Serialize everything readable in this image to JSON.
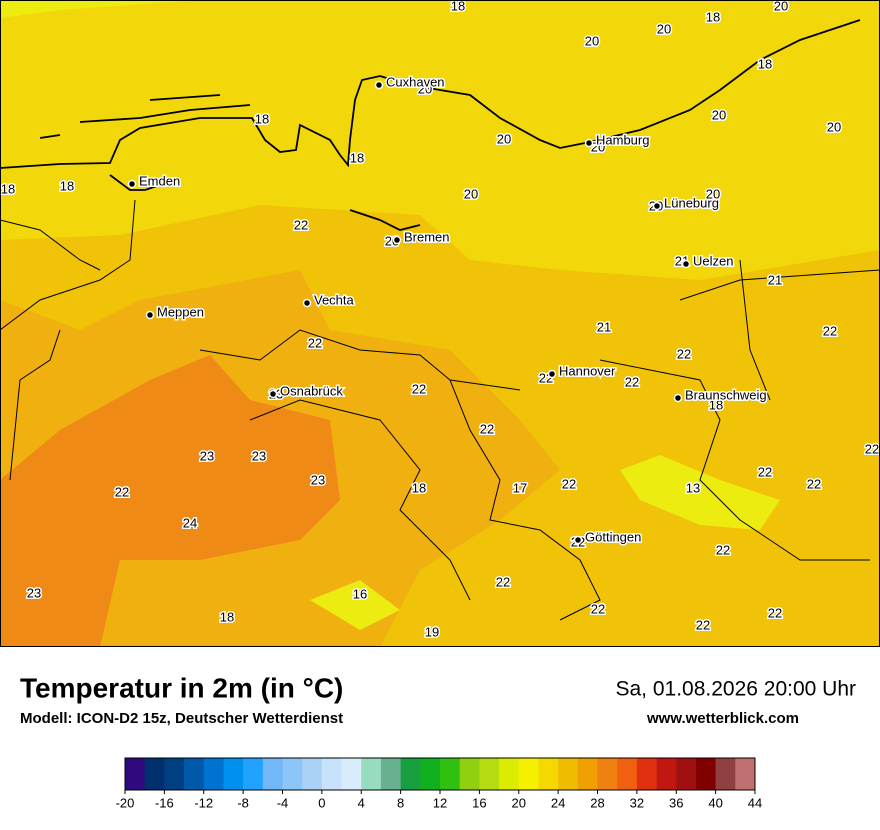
{
  "header": {
    "title": "Temperatur in 2m (in °C)",
    "subtitle": "Modell: ICON-D2 15z, Deutscher Wetterdienst",
    "datetime": "Sa, 01.08.2026 20:00 Uhr",
    "website": "www.wetterblick.com"
  },
  "map": {
    "cities": [
      "Cuxhaven",
      "Hamburg",
      "Emden",
      "Lüneburg",
      "Bremen",
      "Uelzen",
      "Vechta",
      "Meppen",
      "Hannover",
      "Osnabrück",
      "Braunschweig",
      "Göttingen"
    ],
    "temperature_labels": [
      18,
      18,
      20,
      20,
      20,
      18,
      20,
      20,
      20,
      18,
      18,
      20,
      20,
      18,
      18,
      20,
      20,
      20,
      22,
      20,
      21,
      21,
      21,
      22,
      22,
      22,
      22,
      22,
      22,
      23,
      18,
      22,
      22,
      23,
      23,
      23,
      18,
      17,
      22,
      22,
      22,
      13,
      22,
      24,
      22,
      22,
      22,
      23,
      16,
      22,
      18,
      22,
      22,
      19
    ]
  },
  "colorbar": {
    "ticks": [
      -20,
      -16,
      -12,
      -8,
      -4,
      0,
      4,
      8,
      12,
      16,
      20,
      24,
      28,
      32,
      36,
      40,
      44
    ],
    "colors": [
      "#2e0a7e",
      "#00306e",
      "#003f82",
      "#0058a8",
      "#0072d2",
      "#0090f0",
      "#22a2ff",
      "#72b8f8",
      "#8cc6f8",
      "#aad2f6",
      "#c8e2fc",
      "#d8ecfc",
      "#98dcc0",
      "#68b090",
      "#18a040",
      "#10b020",
      "#30c010",
      "#90d010",
      "#b4dc10",
      "#dcec00",
      "#f4f000",
      "#f4d800",
      "#f0bc00",
      "#f0a000",
      "#f08010",
      "#f06010",
      "#e03010",
      "#c01810",
      "#a01010",
      "#800000",
      "#904040",
      "#c07070"
    ]
  }
}
